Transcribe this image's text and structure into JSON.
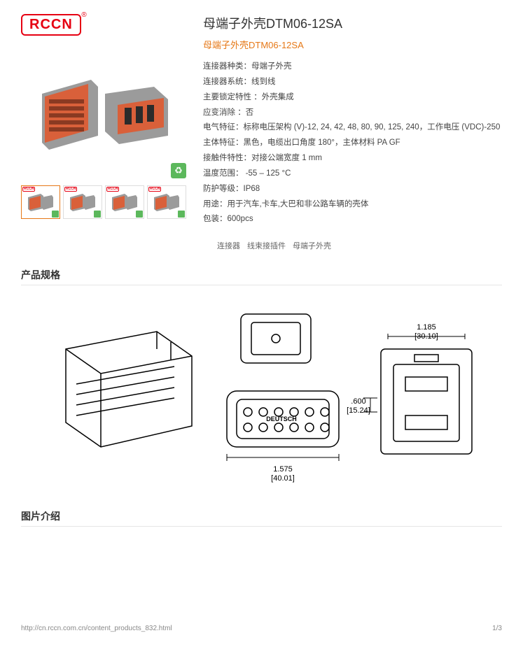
{
  "brand": "RCCN",
  "product": {
    "title": "母端子外壳DTM06-12SA",
    "subtitle": "母端子外壳DTM06-12SA"
  },
  "specs": [
    "连接器种类：母端子外壳",
    "连接器系统：线到线",
    "主要锁定特性 ：外壳集成",
    "应变消除 ：否",
    "电气特征：标称电压架构 (V)-12, 24, 42, 48, 80, 90, 125, 240，工作电压 (VDC)-250",
    "主体特征：黑色，电缆出口角度 180°，主体材料 PA GF",
    "接触件特性：对接公端宽度 1 mm",
    "温度范围： -55 – 125 °C",
    "防护等级：IP68",
    "用途：用于汽车,卡车,大巴和非公路车辆的壳体",
    "包装：600pcs"
  ],
  "tags": [
    "连接器",
    "线束接插件",
    "母端子外壳"
  ],
  "sections": {
    "spec_title": "产品规格",
    "gallery_title": "图片介绍"
  },
  "dimensions": {
    "w_label": "1.575",
    "w_mm": "[40.01]",
    "h_label": ".600",
    "h_mm": "[15.24]",
    "top_w": "1.185",
    "top_w_mm": "[30.10]",
    "brand_mark": "DEUTSCH"
  },
  "thumbs": [
    {
      "active": true
    },
    {
      "active": false
    },
    {
      "active": false
    },
    {
      "active": false
    }
  ],
  "footer": {
    "url": "http://cn.rccn.com.cn/content_products_832.html",
    "page": "1/3"
  },
  "colors": {
    "accent": "#e67817",
    "brand_red": "#e60012",
    "conn_body": "#9b9b9b",
    "conn_face": "#d9603a"
  }
}
